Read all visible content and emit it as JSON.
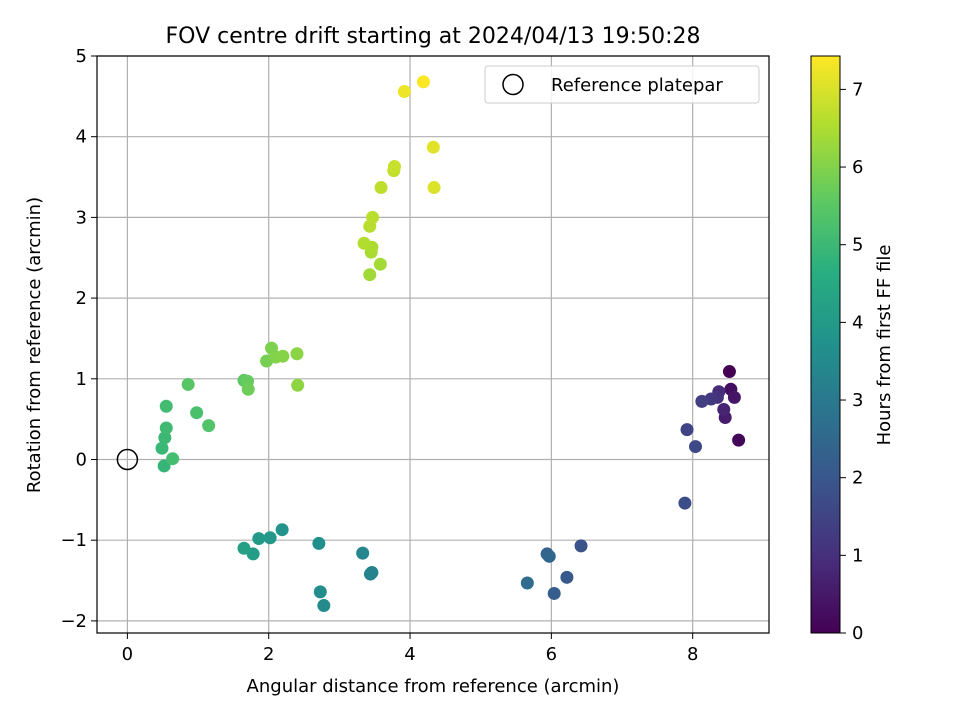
{
  "chart_data": {
    "type": "scatter",
    "title": "FOV centre drift starting at 2024/04/13 19:50:28",
    "xlabel": "Angular distance from reference (arcmin)",
    "ylabel": "Rotation from reference (arcmin)",
    "xlim": [
      -0.43,
      9.08
    ],
    "ylim": [
      -2.15,
      5.0
    ],
    "xticks": [
      "0",
      "2",
      "4",
      "6",
      "8"
    ],
    "yticks": [
      "−2",
      "−1",
      "0",
      "1",
      "2",
      "3",
      "4",
      "5"
    ],
    "grid": true,
    "legend": {
      "placement": "top-right",
      "entries": [
        "Reference platepar"
      ]
    },
    "reference_point": {
      "x": 0,
      "y": 0,
      "label": "Reference platepar"
    },
    "colorbar": {
      "label": "Hours from first FF file",
      "colormap": "viridis",
      "range": [
        0,
        7.43
      ],
      "ticks": [
        "0",
        "1",
        "2",
        "3",
        "4",
        "5",
        "6",
        "7"
      ]
    },
    "points": [
      {
        "x": 8.52,
        "y": 1.09,
        "h": 0.0
      },
      {
        "x": 8.65,
        "y": 0.24,
        "h": 0.15
      },
      {
        "x": 8.54,
        "y": 0.87,
        "h": 0.3
      },
      {
        "x": 8.59,
        "y": 0.77,
        "h": 0.45
      },
      {
        "x": 8.46,
        "y": 0.52,
        "h": 0.6
      },
      {
        "x": 8.44,
        "y": 0.62,
        "h": 0.75
      },
      {
        "x": 8.37,
        "y": 0.84,
        "h": 0.9
      },
      {
        "x": 8.35,
        "y": 0.77,
        "h": 1.05
      },
      {
        "x": 8.26,
        "y": 0.75,
        "h": 1.2
      },
      {
        "x": 8.13,
        "y": 0.72,
        "h": 1.35
      },
      {
        "x": 7.92,
        "y": 0.37,
        "h": 1.5
      },
      {
        "x": 8.04,
        "y": 0.16,
        "h": 1.62
      },
      {
        "x": 7.89,
        "y": -0.54,
        "h": 1.75
      },
      {
        "x": 6.42,
        "y": -1.07,
        "h": 1.9
      },
      {
        "x": 6.22,
        "y": -1.46,
        "h": 2.05
      },
      {
        "x": 6.04,
        "y": -1.66,
        "h": 2.2
      },
      {
        "x": 5.94,
        "y": -1.17,
        "h": 2.32
      },
      {
        "x": 5.97,
        "y": -1.2,
        "h": 2.45
      },
      {
        "x": 5.66,
        "y": -1.53,
        "h": 2.6
      },
      {
        "x": 3.46,
        "y": -1.4,
        "h": 3.2
      },
      {
        "x": 3.44,
        "y": -1.42,
        "h": 3.3
      },
      {
        "x": 3.33,
        "y": -1.16,
        "h": 3.4
      },
      {
        "x": 2.78,
        "y": -1.81,
        "h": 3.5
      },
      {
        "x": 2.73,
        "y": -1.64,
        "h": 3.6
      },
      {
        "x": 2.71,
        "y": -1.04,
        "h": 3.7
      },
      {
        "x": 2.19,
        "y": -0.87,
        "h": 3.8
      },
      {
        "x": 2.02,
        "y": -0.97,
        "h": 3.9
      },
      {
        "x": 1.86,
        "y": -0.98,
        "h": 4.0
      },
      {
        "x": 1.78,
        "y": -1.17,
        "h": 4.1
      },
      {
        "x": 1.65,
        "y": -1.1,
        "h": 4.2
      },
      {
        "x": 0.52,
        "y": -0.08,
        "h": 4.9
      },
      {
        "x": 0.49,
        "y": 0.14,
        "h": 4.95
      },
      {
        "x": 0.53,
        "y": 0.27,
        "h": 5.0
      },
      {
        "x": 0.55,
        "y": 0.39,
        "h": 5.05
      },
      {
        "x": 0.55,
        "y": 0.66,
        "h": 5.1
      },
      {
        "x": 0.64,
        "y": 0.01,
        "h": 5.15
      },
      {
        "x": 0.98,
        "y": 0.58,
        "h": 5.25
      },
      {
        "x": 1.15,
        "y": 0.42,
        "h": 5.35
      },
      {
        "x": 0.86,
        "y": 0.93,
        "h": 5.45
      },
      {
        "x": 1.65,
        "y": 0.98,
        "h": 5.55
      },
      {
        "x": 1.7,
        "y": 0.97,
        "h": 5.65
      },
      {
        "x": 1.71,
        "y": 0.87,
        "h": 5.75
      },
      {
        "x": 1.97,
        "y": 1.22,
        "h": 5.85
      },
      {
        "x": 2.04,
        "y": 1.38,
        "h": 5.95
      },
      {
        "x": 2.1,
        "y": 1.27,
        "h": 6.0
      },
      {
        "x": 2.2,
        "y": 1.28,
        "h": 6.05
      },
      {
        "x": 2.4,
        "y": 1.31,
        "h": 6.1
      },
      {
        "x": 2.41,
        "y": 0.92,
        "h": 6.15
      },
      {
        "x": 3.43,
        "y": 2.29,
        "h": 6.35
      },
      {
        "x": 3.58,
        "y": 2.42,
        "h": 6.4
      },
      {
        "x": 3.45,
        "y": 2.57,
        "h": 6.45
      },
      {
        "x": 3.46,
        "y": 2.63,
        "h": 6.5
      },
      {
        "x": 3.35,
        "y": 2.68,
        "h": 6.55
      },
      {
        "x": 3.43,
        "y": 2.89,
        "h": 6.6
      },
      {
        "x": 3.47,
        "y": 3.0,
        "h": 6.65
      },
      {
        "x": 3.59,
        "y": 3.37,
        "h": 6.7
      },
      {
        "x": 3.77,
        "y": 3.58,
        "h": 6.75
      },
      {
        "x": 3.78,
        "y": 3.63,
        "h": 6.8
      },
      {
        "x": 4.34,
        "y": 3.37,
        "h": 7.05
      },
      {
        "x": 4.33,
        "y": 3.87,
        "h": 7.1
      },
      {
        "x": 3.92,
        "y": 4.56,
        "h": 7.25
      },
      {
        "x": 4.19,
        "y": 4.68,
        "h": 7.43
      }
    ]
  }
}
